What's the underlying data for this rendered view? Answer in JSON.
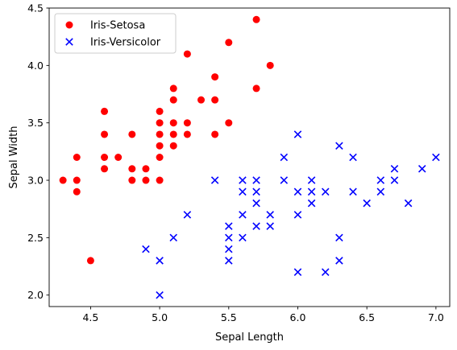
{
  "chart_data": {
    "type": "scatter",
    "title": "",
    "xlabel": "Sepal Length",
    "ylabel": "Sepal Width",
    "xlim": [
      4.2,
      7.1
    ],
    "ylim": [
      1.9,
      4.5
    ],
    "xticks": [
      "4.5",
      "5.0",
      "5.5",
      "6.0",
      "6.5",
      "7.0"
    ],
    "yticks": [
      "2.0",
      "2.5",
      "3.0",
      "3.5",
      "4.0",
      "4.5"
    ],
    "grid": false,
    "legend_position": "upper-left",
    "series": [
      {
        "name": "Iris-Setosa",
        "marker": "circle",
        "color": "#ff0000",
        "points": [
          [
            4.3,
            3.0
          ],
          [
            4.4,
            2.9
          ],
          [
            4.4,
            3.0
          ],
          [
            4.4,
            3.2
          ],
          [
            4.5,
            2.3
          ],
          [
            4.6,
            3.1
          ],
          [
            4.6,
            3.2
          ],
          [
            4.6,
            3.4
          ],
          [
            4.6,
            3.6
          ],
          [
            4.7,
            3.2
          ],
          [
            4.8,
            3.0
          ],
          [
            4.8,
            3.1
          ],
          [
            4.8,
            3.4
          ],
          [
            4.9,
            3.0
          ],
          [
            4.9,
            3.1
          ],
          [
            5.0,
            3.0
          ],
          [
            5.0,
            3.2
          ],
          [
            5.0,
            3.3
          ],
          [
            5.0,
            3.4
          ],
          [
            5.0,
            3.5
          ],
          [
            5.0,
            3.6
          ],
          [
            5.1,
            3.3
          ],
          [
            5.1,
            3.4
          ],
          [
            5.1,
            3.5
          ],
          [
            5.1,
            3.7
          ],
          [
            5.1,
            3.8
          ],
          [
            5.2,
            3.4
          ],
          [
            5.2,
            3.5
          ],
          [
            5.2,
            4.1
          ],
          [
            5.3,
            3.7
          ],
          [
            5.4,
            3.4
          ],
          [
            5.4,
            3.7
          ],
          [
            5.4,
            3.9
          ],
          [
            5.5,
            3.5
          ],
          [
            5.5,
            4.2
          ],
          [
            5.7,
            3.8
          ],
          [
            5.7,
            4.4
          ],
          [
            5.8,
            4.0
          ]
        ]
      },
      {
        "name": "Iris-Versicolor",
        "marker": "x",
        "color": "#0000ff",
        "points": [
          [
            4.9,
            2.4
          ],
          [
            5.0,
            2.0
          ],
          [
            5.0,
            2.3
          ],
          [
            5.1,
            2.5
          ],
          [
            5.2,
            2.7
          ],
          [
            5.4,
            3.0
          ],
          [
            5.5,
            2.3
          ],
          [
            5.5,
            2.4
          ],
          [
            5.5,
            2.5
          ],
          [
            5.5,
            2.6
          ],
          [
            5.6,
            2.5
          ],
          [
            5.6,
            2.7
          ],
          [
            5.6,
            2.9
          ],
          [
            5.6,
            3.0
          ],
          [
            5.7,
            2.6
          ],
          [
            5.7,
            2.8
          ],
          [
            5.7,
            2.9
          ],
          [
            5.7,
            3.0
          ],
          [
            5.8,
            2.6
          ],
          [
            5.8,
            2.7
          ],
          [
            5.9,
            3.0
          ],
          [
            5.9,
            3.2
          ],
          [
            6.0,
            2.2
          ],
          [
            6.0,
            2.7
          ],
          [
            6.0,
            2.9
          ],
          [
            6.0,
            3.4
          ],
          [
            6.1,
            2.8
          ],
          [
            6.1,
            2.9
          ],
          [
            6.1,
            3.0
          ],
          [
            6.2,
            2.2
          ],
          [
            6.2,
            2.9
          ],
          [
            6.3,
            2.3
          ],
          [
            6.3,
            2.5
          ],
          [
            6.3,
            3.3
          ],
          [
            6.4,
            2.9
          ],
          [
            6.4,
            3.2
          ],
          [
            6.5,
            2.8
          ],
          [
            6.6,
            2.9
          ],
          [
            6.6,
            3.0
          ],
          [
            6.7,
            3.0
          ],
          [
            6.7,
            3.1
          ],
          [
            6.8,
            2.8
          ],
          [
            6.9,
            3.1
          ],
          [
            7.0,
            3.2
          ]
        ]
      }
    ]
  }
}
